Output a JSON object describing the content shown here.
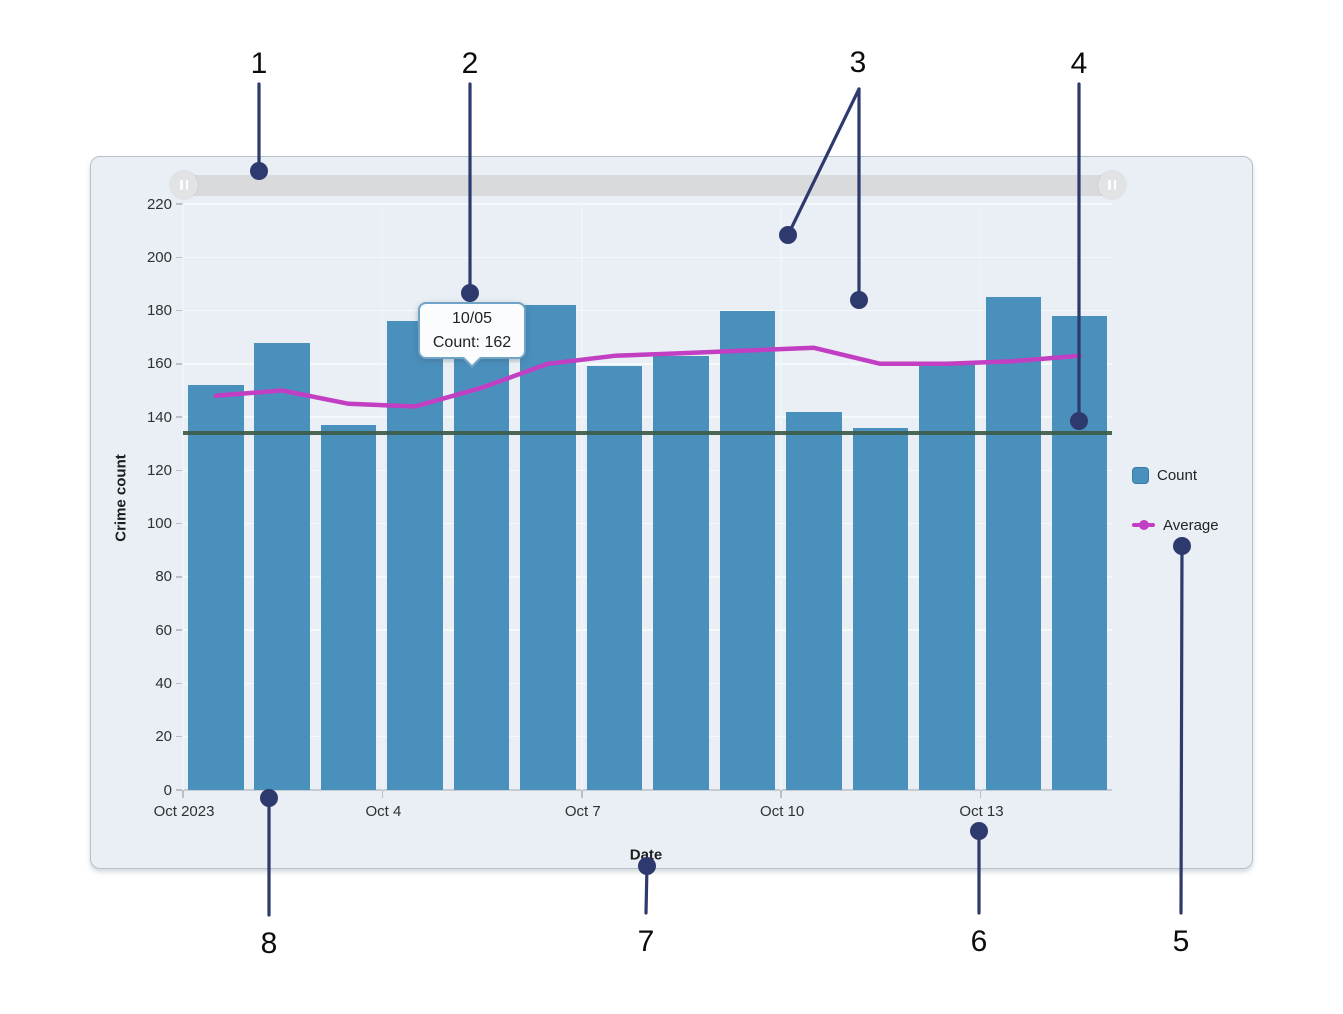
{
  "chart_data": {
    "type": "bar",
    "title": "",
    "xlabel": "Date",
    "ylabel": "Crime count",
    "categories": [
      "2023-10-01",
      "2023-10-02",
      "2023-10-03",
      "2023-10-04",
      "2023-10-05",
      "2023-10-06",
      "2023-10-07",
      "2023-10-08",
      "2023-10-09",
      "2023-10-10",
      "2023-10-11",
      "2023-10-12",
      "2023-10-13",
      "2023-10-14"
    ],
    "series": [
      {
        "name": "Count",
        "type": "bar",
        "color": "#4a90bc",
        "values": [
          152,
          168,
          137,
          176,
          162,
          182,
          159,
          163,
          180,
          142,
          136,
          160,
          185,
          178
        ]
      },
      {
        "name": "Average",
        "type": "line",
        "color": "#c23ec2",
        "values": [
          148,
          150,
          145,
          144,
          151,
          160,
          163,
          164,
          165,
          166,
          160,
          160,
          161,
          163
        ]
      }
    ],
    "reference_line": {
      "value": 134,
      "color": "#3d5c49"
    },
    "ylim": [
      0,
      220
    ],
    "ytick_step": 20,
    "ytick_labels": [
      "0",
      "20",
      "40",
      "60",
      "80",
      "100",
      "120",
      "140",
      "160",
      "180",
      "200",
      "220"
    ],
    "xticks": [
      {
        "label": "Oct 2023",
        "day_index": 0
      },
      {
        "label": "Oct 4",
        "day_index": 3
      },
      {
        "label": "Oct 7",
        "day_index": 6
      },
      {
        "label": "Oct 10",
        "day_index": 9
      },
      {
        "label": "Oct 13",
        "day_index": 12
      }
    ],
    "grid": true,
    "legend_position": "right"
  },
  "legend": {
    "items": [
      {
        "label": "Count",
        "marker": "square"
      },
      {
        "label": "Average",
        "marker": "line-dot"
      }
    ]
  },
  "tooltip": {
    "title": "10/05",
    "body": "Count: 162"
  },
  "callouts": [
    {
      "label": "1",
      "target": "time-range-slider"
    },
    {
      "label": "2",
      "target": "tooltip"
    },
    {
      "label": "3",
      "target": "plot-area"
    },
    {
      "label": "4",
      "target": "reference-line"
    },
    {
      "label": "5",
      "target": "legend"
    },
    {
      "label": "6",
      "target": "x-axis-tick-labels"
    },
    {
      "label": "7",
      "target": "x-axis-title"
    },
    {
      "label": "8",
      "target": "x-axis"
    }
  ],
  "colors": {
    "bar": "#4a90bc",
    "average_line": "#c23ec2",
    "reference_line": "#3d5c49",
    "callout": "#2e3a6e",
    "panel_bg": "#e9eff4",
    "tooltip_border": "#71a3c6"
  }
}
